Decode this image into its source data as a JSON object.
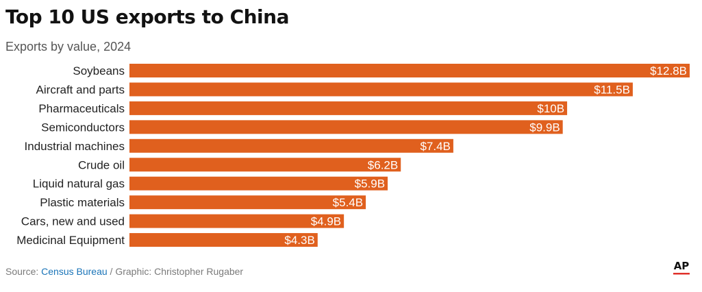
{
  "header": {
    "title": "Top 10 US exports to China",
    "subtitle": "Exports by value, 2024"
  },
  "footer": {
    "source_prefix": "Source: ",
    "source_name": "Census Bureau",
    "credit": " / Graphic: Christopher Rugaber"
  },
  "logo": {
    "text": "AP"
  },
  "colors": {
    "bar": "#e0601e",
    "bar_label": "#ffffff",
    "category_label": "#222222",
    "logo_rule": "#e0312b"
  },
  "chart_data": {
    "type": "bar",
    "orientation": "horizontal",
    "title": "Top 10 US exports to China",
    "subtitle": "Exports by value, 2024",
    "categories": [
      "Soybeans",
      "Aircraft and parts",
      "Pharmaceuticals",
      "Semiconductors",
      "Industrial machines",
      "Crude oil",
      "Liquid natural gas",
      "Plastic materials",
      "Cars, new and used",
      "Medicinal Equipment"
    ],
    "values": [
      12.8,
      11.5,
      10,
      9.9,
      7.4,
      6.2,
      5.9,
      5.4,
      4.9,
      4.3
    ],
    "value_labels": [
      "$12.8B",
      "$11.5B",
      "$10B",
      "$9.9B",
      "$7.4B",
      "$6.2B",
      "$5.9B",
      "$5.4B",
      "$4.9B",
      "$4.3B"
    ],
    "unit": "billion USD",
    "xlim": [
      0,
      12.8
    ],
    "grid": false,
    "legend": "none"
  }
}
